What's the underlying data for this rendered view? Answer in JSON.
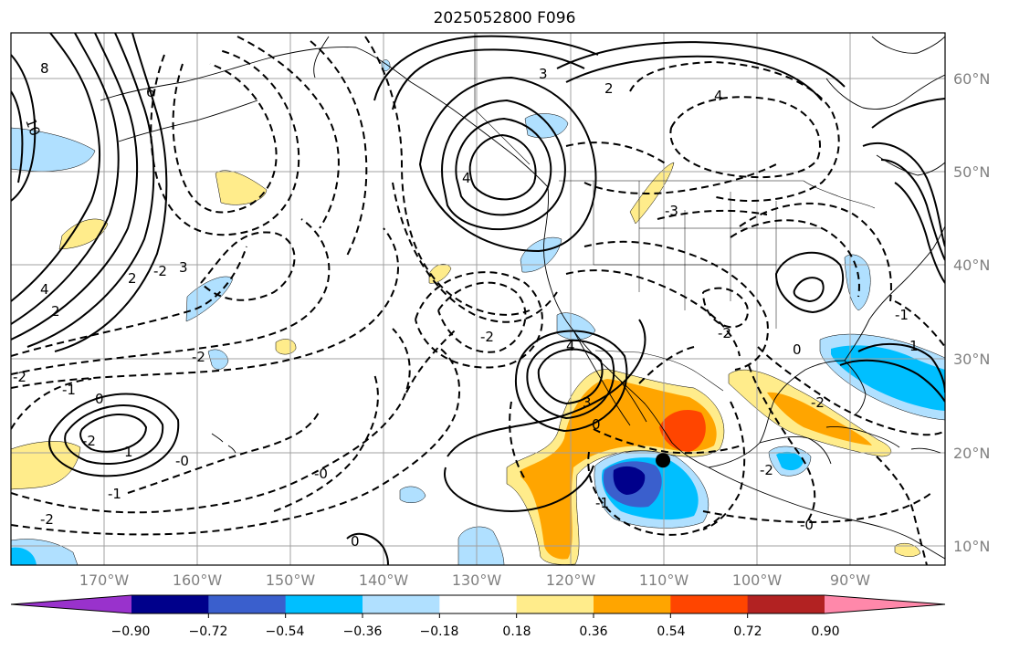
{
  "title": "2025052800 F096",
  "lat_labels": [
    {
      "value": 60,
      "text": "60°N"
    },
    {
      "value": 50,
      "text": "50°N"
    },
    {
      "value": 40,
      "text": "40°N"
    },
    {
      "value": 30,
      "text": "30°N"
    },
    {
      "value": 20,
      "text": "20°N"
    },
    {
      "value": 10,
      "text": "10°N"
    }
  ],
  "lon_labels": [
    {
      "value": -170,
      "text": "170°W"
    },
    {
      "value": -160,
      "text": "160°W"
    },
    {
      "value": -150,
      "text": "150°W"
    },
    {
      "value": -140,
      "text": "140°W"
    },
    {
      "value": -130,
      "text": "130°W"
    },
    {
      "value": -120,
      "text": "120°W"
    },
    {
      "value": -110,
      "text": "110°W"
    },
    {
      "value": -100,
      "text": "100°W"
    },
    {
      "value": -90,
      "text": "90°W"
    }
  ],
  "colorbar": {
    "bins": [
      {
        "color": "#9932cc"
      },
      {
        "color": "#00008b"
      },
      {
        "color": "#3a5fcd"
      },
      {
        "color": "#00bfff"
      },
      {
        "color": "#b0e0ff"
      },
      {
        "color": "#ffffff"
      },
      {
        "color": "#ffec8b"
      },
      {
        "color": "#ffa500"
      },
      {
        "color": "#ff4500"
      },
      {
        "color": "#b22222"
      },
      {
        "color": "#ff88aa"
      }
    ],
    "ticks": [
      "−0.90",
      "−0.72",
      "−0.54",
      "−0.36",
      "−0.18",
      "0.18",
      "0.36",
      "0.54",
      "0.72",
      "0.90"
    ]
  },
  "contour_labels": [
    {
      "text": "8"
    },
    {
      "text": "10"
    },
    {
      "text": "6"
    },
    {
      "text": "4"
    },
    {
      "text": "2"
    },
    {
      "text": "3"
    },
    {
      "text": "-2"
    },
    {
      "text": "2"
    },
    {
      "text": "4"
    },
    {
      "text": "3"
    },
    {
      "text": "4"
    },
    {
      "text": "-3"
    },
    {
      "text": "2"
    },
    {
      "text": "-2"
    },
    {
      "text": "-2"
    },
    {
      "text": "-2"
    },
    {
      "text": "-1"
    },
    {
      "text": "0"
    },
    {
      "text": "-2"
    },
    {
      "text": "1"
    },
    {
      "text": "-0"
    },
    {
      "text": "-1"
    },
    {
      "text": "-2"
    },
    {
      "text": "-0"
    },
    {
      "text": "0"
    },
    {
      "text": "4"
    },
    {
      "text": "3"
    },
    {
      "text": "0"
    },
    {
      "text": "-1"
    },
    {
      "text": "-2"
    },
    {
      "text": "-0"
    },
    {
      "text": "-2"
    },
    {
      "text": "0"
    },
    {
      "text": "-2"
    },
    {
      "text": "1"
    },
    {
      "text": "-1"
    }
  ],
  "marker": {
    "lon": -110.2,
    "lat": 19.2
  }
}
